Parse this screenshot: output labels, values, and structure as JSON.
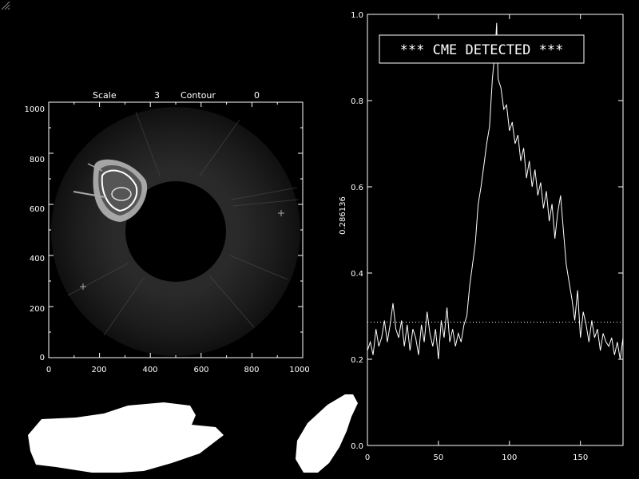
{
  "image_panel": {
    "header": {
      "scale_label": "Scale",
      "scale_value": "3",
      "contour_label": "Contour",
      "contour_value": "0"
    },
    "x_ticks": [
      "0",
      "200",
      "400",
      "600",
      "800",
      "1000"
    ],
    "y_ticks": [
      "0",
      "200",
      "400",
      "600",
      "800",
      "1000"
    ]
  },
  "chart_data": {
    "type": "line",
    "title": "",
    "annotation": "*** CME DETECTED ***",
    "xlabel": "",
    "ylabel": "0.286136",
    "xlim": [
      0,
      180
    ],
    "ylim": [
      0.0,
      1.0
    ],
    "x_ticks": [
      "0",
      "50",
      "100",
      "150"
    ],
    "y_ticks": [
      "0.0",
      "0.2",
      "0.4",
      "0.6",
      "0.8",
      "1.0"
    ],
    "threshold": 0.286136,
    "threshold_style": "dotted",
    "grid": false,
    "series": [
      {
        "x": [
          0,
          2,
          4,
          6,
          8,
          10,
          12,
          14,
          16,
          18,
          20,
          22,
          24,
          26,
          28,
          30,
          32,
          34,
          36,
          38,
          40,
          42,
          44,
          46,
          48,
          50,
          52,
          54,
          56,
          58,
          60,
          62,
          64,
          66,
          68,
          70,
          72,
          74,
          76,
          78,
          80,
          82,
          84,
          86,
          88,
          90,
          91,
          92,
          94,
          96,
          98,
          100,
          102,
          104,
          106,
          108,
          110,
          112,
          114,
          116,
          118,
          120,
          122,
          124,
          126,
          128,
          130,
          132,
          134,
          136,
          138,
          140,
          142,
          144,
          146,
          148,
          150,
          152,
          154,
          156,
          158,
          160,
          162,
          164,
          166,
          168,
          170,
          172,
          174,
          176,
          178,
          180
        ],
        "y": [
          0.22,
          0.24,
          0.21,
          0.27,
          0.23,
          0.25,
          0.29,
          0.24,
          0.28,
          0.33,
          0.27,
          0.25,
          0.29,
          0.23,
          0.28,
          0.22,
          0.27,
          0.25,
          0.21,
          0.28,
          0.24,
          0.31,
          0.26,
          0.23,
          0.27,
          0.2,
          0.29,
          0.25,
          0.32,
          0.24,
          0.27,
          0.23,
          0.26,
          0.24,
          0.28,
          0.3,
          0.37,
          0.42,
          0.47,
          0.56,
          0.6,
          0.65,
          0.7,
          0.74,
          0.85,
          0.92,
          0.98,
          0.85,
          0.83,
          0.78,
          0.79,
          0.73,
          0.75,
          0.7,
          0.72,
          0.66,
          0.69,
          0.62,
          0.66,
          0.6,
          0.64,
          0.58,
          0.61,
          0.55,
          0.59,
          0.52,
          0.56,
          0.48,
          0.54,
          0.58,
          0.5,
          0.42,
          0.38,
          0.34,
          0.29,
          0.36,
          0.25,
          0.31,
          0.28,
          0.24,
          0.29,
          0.25,
          0.27,
          0.22,
          0.26,
          0.24,
          0.23,
          0.25,
          0.21,
          0.24,
          0.2,
          0.25
        ]
      }
    ]
  }
}
